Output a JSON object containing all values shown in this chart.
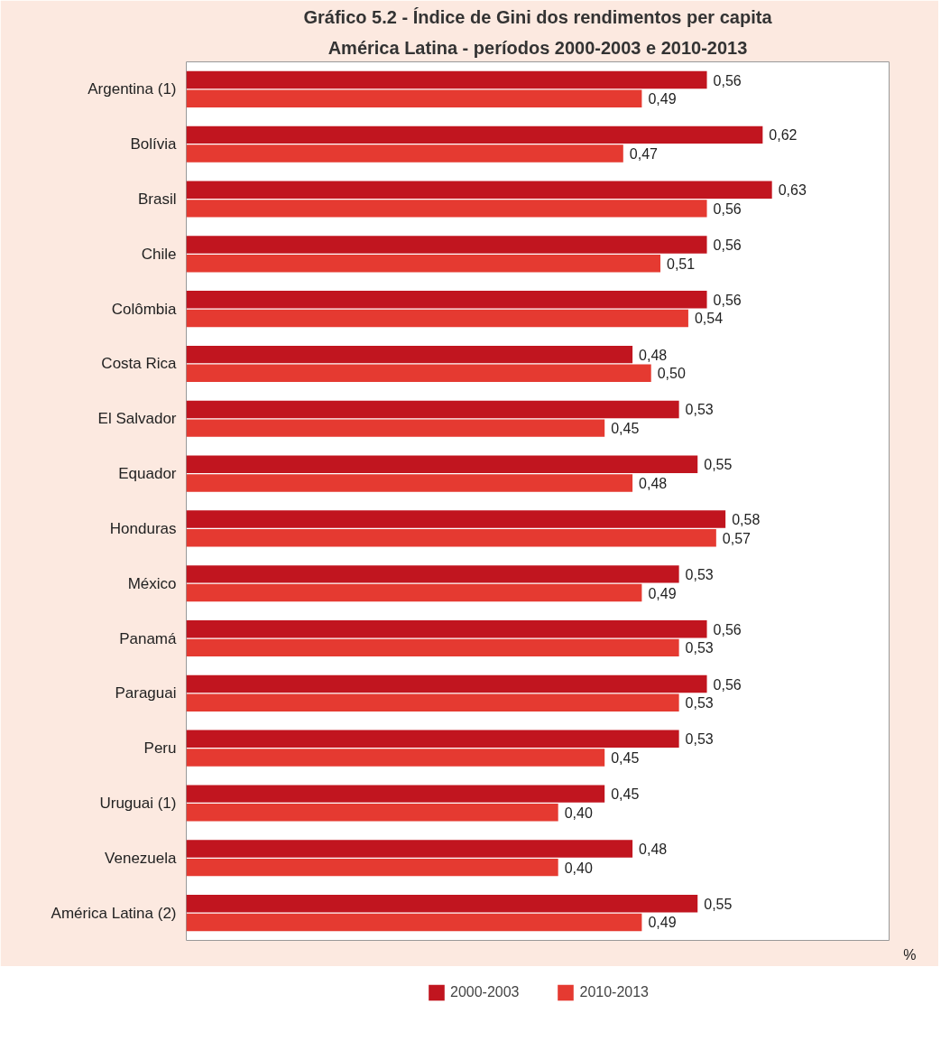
{
  "chart_data": {
    "type": "bar",
    "orientation": "horizontal",
    "title": "Gráfico 5.2 - Índice de Gini dos rendimentos per capita",
    "subtitle": "América Latina - períodos 2000-2003 e 2010-2013",
    "categories": [
      "Argentina (1)",
      "Bolívia",
      "Brasil",
      "Chile",
      "Colômbia",
      "Costa Rica",
      "El Salvador",
      "Equador",
      "Honduras",
      "México",
      "Panamá",
      "Paraguai",
      "Peru",
      "Uruguai (1)",
      "Venezuela",
      "América Latina (2)"
    ],
    "series": [
      {
        "name": "2000-2003",
        "color": "#c1151f",
        "values": [
          0.56,
          0.62,
          0.63,
          0.56,
          0.56,
          0.48,
          0.53,
          0.55,
          0.58,
          0.53,
          0.56,
          0.56,
          0.53,
          0.45,
          0.48,
          0.55
        ],
        "value_labels": [
          "0,56",
          "0,62",
          "0,63",
          "0,56",
          "0,56",
          "0,48",
          "0,53",
          "0,55",
          "0,58",
          "0,53",
          "0,56",
          "0,56",
          "0,53",
          "0,45",
          "0,48",
          "0,55"
        ]
      },
      {
        "name": "2010-2013",
        "color": "#e53a31",
        "values": [
          0.49,
          0.47,
          0.56,
          0.51,
          0.54,
          0.5,
          0.45,
          0.48,
          0.57,
          0.49,
          0.53,
          0.53,
          0.45,
          0.4,
          0.4,
          0.49
        ],
        "value_labels": [
          "0,49",
          "0,47",
          "0,56",
          "0,51",
          "0,54",
          "0,50",
          "0,45",
          "0,48",
          "0,57",
          "0,49",
          "0,53",
          "0,53",
          "0,45",
          "0,40",
          "0,40",
          "0,49"
        ]
      }
    ],
    "grid": false,
    "legend": "bottom",
    "annotations": [
      "%"
    ]
  }
}
